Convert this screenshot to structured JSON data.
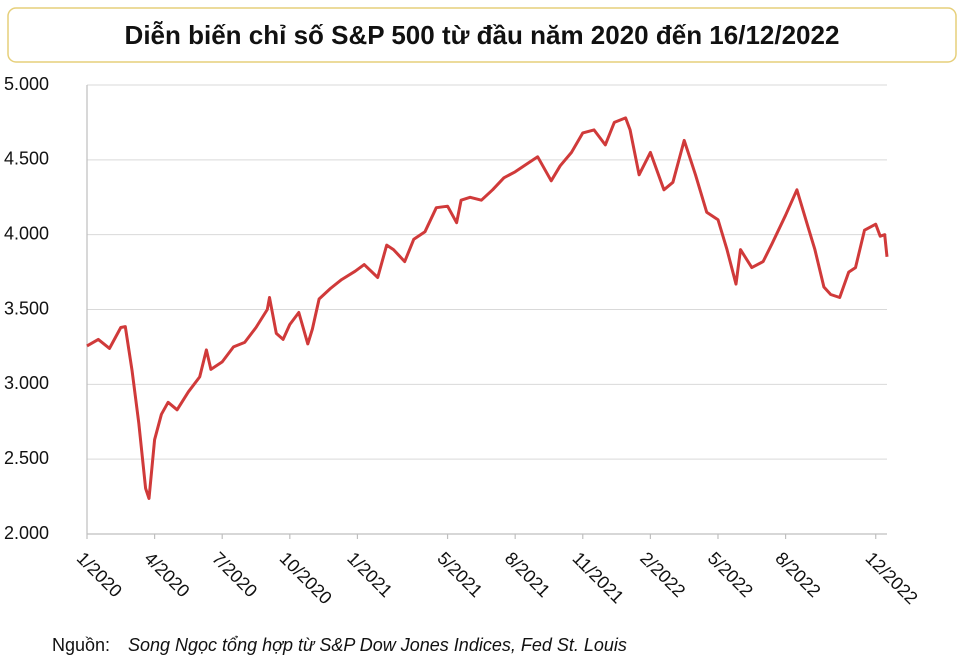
{
  "chart_data": {
    "type": "line",
    "title": "Diễn biến chỉ số S&P 500 từ đầu năm 2020 đến 16/12/2022",
    "source_label": "Nguồn:",
    "source": "Song Ngọc tổng hợp từ S&P Dow Jones Indices, Fed St. Louis",
    "x": [
      0,
      0.5,
      1,
      1.5,
      1.7,
      2.0,
      2.3,
      2.6,
      2.75,
      3,
      3.3,
      3.6,
      4,
      4.5,
      5,
      5.3,
      5.5,
      6,
      6.5,
      7,
      7.5,
      8,
      8.1,
      8.4,
      8.7,
      9,
      9.4,
      9.8,
      10,
      10.3,
      10.8,
      11.3,
      11.9,
      12.3,
      12.9,
      13.3,
      13.6,
      14.1,
      14.5,
      15,
      15.5,
      16,
      16.4,
      16.6,
      17,
      17.5,
      18,
      18.5,
      19,
      19.5,
      20,
      20.6,
      21,
      21.5,
      22,
      22.5,
      23,
      23.4,
      23.9,
      24.1,
      24.5,
      25,
      25.6,
      26,
      26.5,
      27,
      27.5,
      28,
      28.4,
      28.8,
      29,
      29.5,
      30,
      30.4,
      31,
      31.5,
      32,
      32.3,
      32.7,
      33,
      33.4,
      33.8,
      34.1,
      34.5,
      35,
      35.2,
      35.4,
      35.5
    ],
    "series": [
      {
        "name": "S&P 500",
        "color": "#d03a3a",
        "values": [
          3257,
          3300,
          3240,
          3380,
          3386,
          3090,
          2740,
          2305,
          2237,
          2630,
          2800,
          2880,
          2830,
          2950,
          3050,
          3230,
          3100,
          3150,
          3250,
          3280,
          3380,
          3500,
          3580,
          3340,
          3300,
          3400,
          3480,
          3270,
          3370,
          3570,
          3640,
          3700,
          3756,
          3800,
          3714,
          3930,
          3900,
          3820,
          3970,
          4020,
          4180,
          4190,
          4080,
          4230,
          4250,
          4230,
          4300,
          4380,
          4420,
          4470,
          4520,
          4360,
          4460,
          4550,
          4680,
          4700,
          4600,
          4750,
          4780,
          4700,
          4400,
          4550,
          4300,
          4350,
          4630,
          4400,
          4150,
          4100,
          3900,
          3670,
          3900,
          3780,
          3820,
          3940,
          4130,
          4300,
          4050,
          3900,
          3650,
          3600,
          3580,
          3750,
          3780,
          4030,
          4070,
          3990,
          4000,
          3852
        ]
      }
    ],
    "xlim": [
      0,
      35.5
    ],
    "xticks": [
      {
        "value": 0,
        "label": "1/2020"
      },
      {
        "value": 3,
        "label": "4/2020"
      },
      {
        "value": 6,
        "label": "7/2020"
      },
      {
        "value": 9,
        "label": "10/2020"
      },
      {
        "value": 12,
        "label": "1/2021"
      },
      {
        "value": 16,
        "label": "5/2021"
      },
      {
        "value": 19,
        "label": "8/2021"
      },
      {
        "value": 22,
        "label": "11/2021"
      },
      {
        "value": 25,
        "label": "2/2022"
      },
      {
        "value": 28,
        "label": "5/2022"
      },
      {
        "value": 31,
        "label": "8/2022"
      },
      {
        "value": 35,
        "label": "12/2022"
      }
    ],
    "ylim": [
      2000,
      5000
    ],
    "yticks": [
      {
        "value": 2000,
        "label": "2.000"
      },
      {
        "value": 2500,
        "label": "2.500"
      },
      {
        "value": 3000,
        "label": "3.000"
      },
      {
        "value": 3500,
        "label": "3.500"
      },
      {
        "value": 4000,
        "label": "4.000"
      },
      {
        "value": 4500,
        "label": "4.500"
      },
      {
        "value": 5000,
        "label": "5.000"
      }
    ],
    "grid": true
  }
}
